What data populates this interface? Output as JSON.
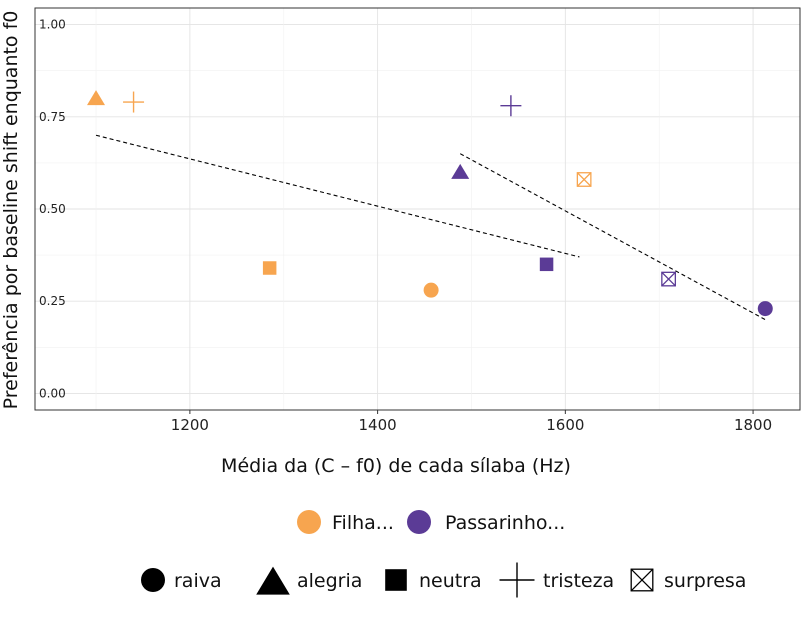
{
  "chart_data": {
    "type": "scatter",
    "xlabel": "Média da (C – f0) de cada sílaba (Hz)",
    "ylabel": "Preferência por baseline shift enquanto f0",
    "xlim": [
      1035,
      1850
    ],
    "ylim": [
      -0.045,
      1.045
    ],
    "x_ticks": [
      1200,
      1400,
      1600,
      1800
    ],
    "x_tick_labels": [
      "1200",
      "1400",
      "1600",
      "1800"
    ],
    "y_ticks": [
      0,
      0.25,
      0.5,
      0.75,
      1
    ],
    "y_tick_labels": [
      "0.00",
      "0.25",
      "0.50",
      "0.75",
      "1.00"
    ],
    "grid": true,
    "legend_position": "bottom",
    "groups": [
      {
        "name": "Filha...",
        "color": "#F7A54F"
      },
      {
        "name": "Passarinho...",
        "color": "#5B3B96"
      }
    ],
    "shapes": [
      {
        "name": "raiva",
        "icon": "filled-circle"
      },
      {
        "name": "alegria",
        "icon": "filled-triangle"
      },
      {
        "name": "neutra",
        "icon": "filled-square"
      },
      {
        "name": "tristeza",
        "icon": "plus"
      },
      {
        "name": "surpresa",
        "icon": "boxed-x"
      }
    ],
    "points": [
      {
        "group": "Filha...",
        "shape": "alegria",
        "x": 1100,
        "y": 0.8
      },
      {
        "group": "Filha...",
        "shape": "tristeza",
        "x": 1140,
        "y": 0.79
      },
      {
        "group": "Filha...",
        "shape": "neutra",
        "x": 1285,
        "y": 0.34
      },
      {
        "group": "Filha...",
        "shape": "raiva",
        "x": 1457,
        "y": 0.28
      },
      {
        "group": "Filha...",
        "shape": "surpresa",
        "x": 1620,
        "y": 0.58
      },
      {
        "group": "Passarinho...",
        "shape": "tristeza",
        "x": 1542,
        "y": 0.78
      },
      {
        "group": "Passarinho...",
        "shape": "alegria",
        "x": 1488,
        "y": 0.6
      },
      {
        "group": "Passarinho...",
        "shape": "neutra",
        "x": 1580,
        "y": 0.35
      },
      {
        "group": "Passarinho...",
        "shape": "surpresa",
        "x": 1710,
        "y": 0.31
      },
      {
        "group": "Passarinho...",
        "shape": "raiva",
        "x": 1813,
        "y": 0.23
      }
    ],
    "trend_lines": [
      {
        "group": "Filha...",
        "style": "dashed",
        "x": [
          1100,
          1615
        ],
        "y": [
          0.7,
          0.37
        ]
      },
      {
        "group": "Passarinho...",
        "style": "dashed",
        "x": [
          1488,
          1813
        ],
        "y": [
          0.65,
          0.2
        ]
      }
    ]
  }
}
